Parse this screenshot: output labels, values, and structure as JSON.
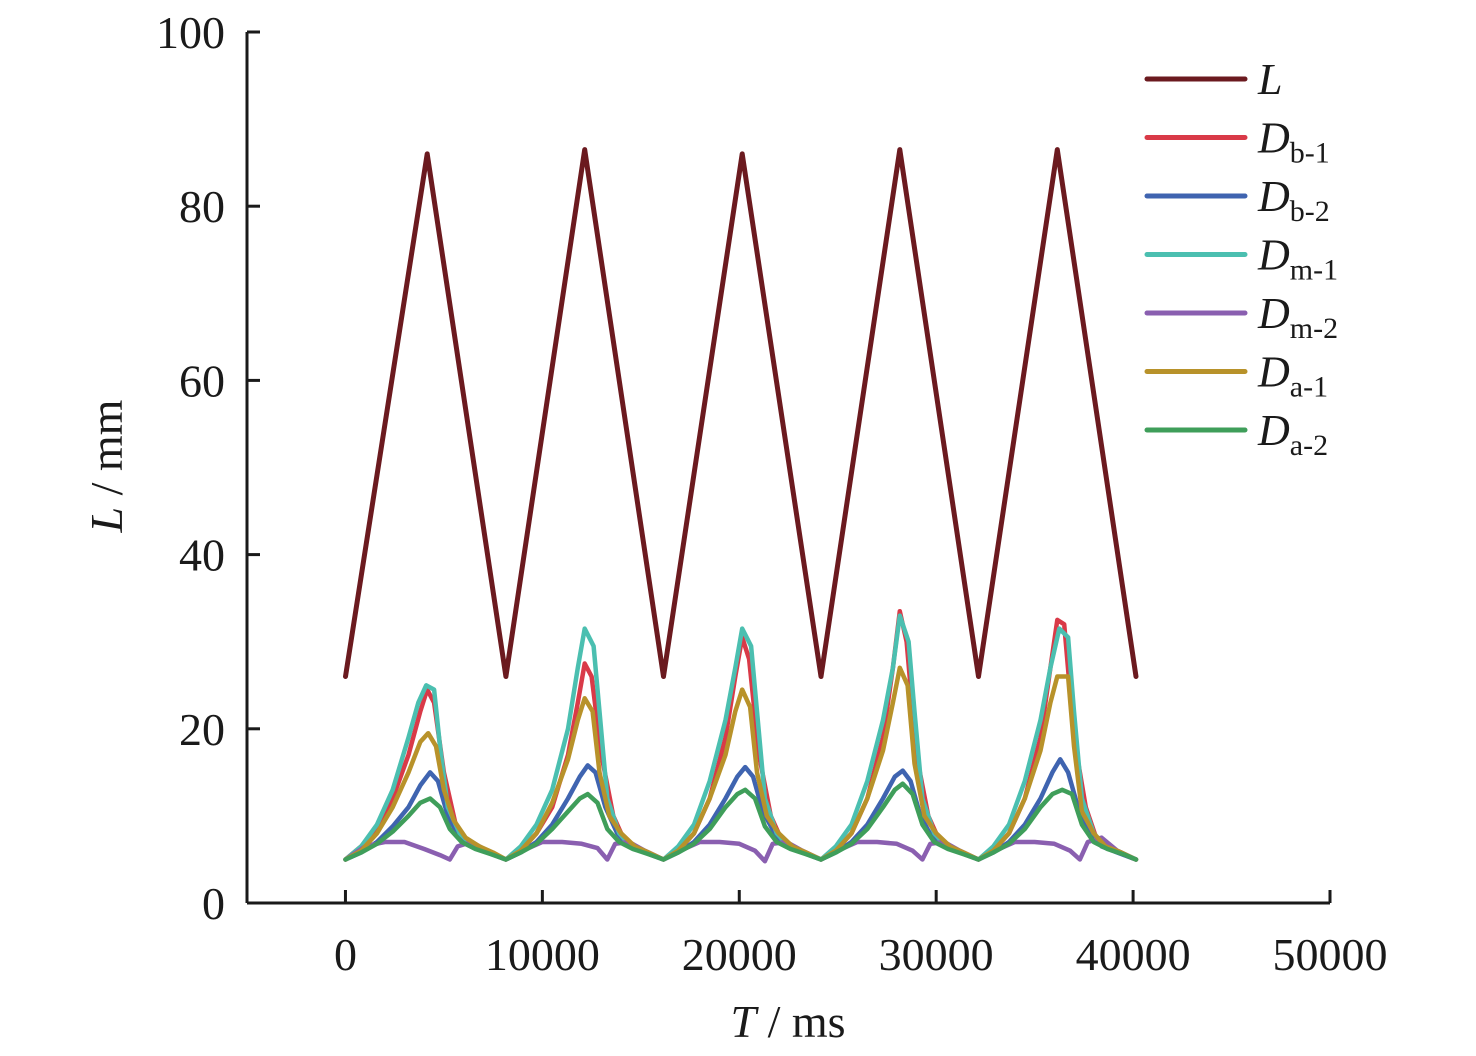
{
  "chart_data": {
    "type": "line",
    "xlabel": {
      "var": "T",
      "unit": " / ms"
    },
    "ylabel": {
      "var": "L",
      "unit": " / mm"
    },
    "xlim": [
      -5000,
      50000
    ],
    "ylim": [
      0,
      100
    ],
    "xticks": [
      0,
      10000,
      20000,
      30000,
      40000,
      50000
    ],
    "yticks": [
      0,
      20,
      40,
      60,
      80,
      100
    ],
    "grid": false,
    "legend_position": "top-right",
    "series": [
      {
        "name": "L",
        "base": "L",
        "sub": "",
        "color": "#6b1a1f",
        "x": [
          0,
          4150,
          8150,
          12150,
          16150,
          20150,
          24150,
          28150,
          32150,
          36150,
          40150
        ],
        "y": [
          26,
          86,
          26,
          86.5,
          26,
          86,
          26,
          86.5,
          26,
          86.5,
          26
        ]
      },
      {
        "name": "D_b-1",
        "base": "D",
        "sub": "b-1",
        "color": "#d93a48",
        "x": [
          0,
          800,
          1600,
          2400,
          3200,
          3800,
          4150,
          4500,
          5000,
          5600,
          6200,
          7000,
          8150,
          8900,
          9700,
          10500,
          11300,
          11800,
          12150,
          12500,
          13000,
          13600,
          14200,
          15000,
          16150,
          16900,
          17700,
          18500,
          19300,
          19800,
          20150,
          20500,
          21000,
          21600,
          22200,
          23000,
          24150,
          24900,
          25700,
          26500,
          27300,
          27800,
          28150,
          28500,
          29000,
          29600,
          30200,
          31000,
          32150,
          32900,
          33700,
          34500,
          35300,
          35800,
          36150,
          36500,
          37000,
          37600,
          38200,
          39000,
          40150
        ],
        "y": [
          5,
          6.5,
          8.5,
          12,
          17,
          22,
          24.5,
          23,
          15,
          9,
          7,
          6,
          5,
          6,
          8,
          11,
          17,
          23,
          27.5,
          26,
          17,
          10,
          7,
          6,
          5,
          6,
          8,
          12,
          19,
          26,
          30.5,
          28,
          17,
          10,
          7,
          6,
          5,
          6,
          8,
          12,
          19,
          27,
          33.5,
          30,
          17,
          10,
          7,
          6,
          5,
          6,
          8,
          12,
          19,
          27,
          32.5,
          32,
          19,
          11,
          7,
          6,
          5
        ]
      },
      {
        "name": "D_b-2",
        "base": "D",
        "sub": "b-2",
        "color": "#3f64b0",
        "x": [
          0,
          800,
          1600,
          2400,
          3200,
          3800,
          4300,
          4700,
          5200,
          5800,
          6400,
          7200,
          8150,
          8900,
          9700,
          10500,
          11300,
          11900,
          12300,
          12700,
          13200,
          13800,
          14400,
          15200,
          16150,
          16900,
          17700,
          18500,
          19300,
          19900,
          20300,
          20700,
          21200,
          21800,
          22400,
          23200,
          24150,
          24900,
          25700,
          26500,
          27300,
          27900,
          28300,
          28700,
          29200,
          29800,
          30400,
          31200,
          32150,
          32900,
          33700,
          34500,
          35300,
          35900,
          36300,
          36700,
          37200,
          37800,
          38400,
          39200,
          40150
        ],
        "y": [
          5,
          5.8,
          7,
          8.8,
          11,
          13.5,
          15,
          14,
          10,
          7.5,
          6.5,
          5.8,
          5,
          5.8,
          7,
          9,
          12,
          14.5,
          15.8,
          15,
          11,
          8,
          6.5,
          5.8,
          5,
          5.8,
          7,
          9,
          12,
          14.5,
          15.6,
          14.5,
          10.5,
          8,
          6.5,
          5.8,
          5,
          5.8,
          7,
          9,
          12,
          14.5,
          15.2,
          14,
          10,
          7.5,
          6.5,
          5.8,
          5,
          5.8,
          7,
          9,
          12,
          15,
          16.5,
          15,
          11,
          8,
          6.5,
          5.8,
          5
        ]
      },
      {
        "name": "D_m-1",
        "base": "D",
        "sub": "m-1",
        "color": "#4bbfb0",
        "x": [
          0,
          800,
          1600,
          2400,
          3200,
          3700,
          4100,
          4500,
          4800,
          5200,
          5800,
          6500,
          7300,
          8150,
          8900,
          9700,
          10500,
          11300,
          11800,
          12150,
          12600,
          12900,
          13300,
          13900,
          14500,
          15300,
          16150,
          16900,
          17700,
          18500,
          19300,
          19800,
          20150,
          20600,
          20900,
          21300,
          21900,
          22500,
          23300,
          24150,
          24900,
          25700,
          26500,
          27300,
          27800,
          28150,
          28600,
          28900,
          29300,
          29900,
          30500,
          31300,
          32150,
          32900,
          33700,
          34500,
          35300,
          35800,
          36250,
          36700,
          37000,
          37400,
          38000,
          38600,
          39400,
          40150
        ],
        "y": [
          5,
          6.5,
          9,
          13,
          19,
          23,
          25,
          24.5,
          18,
          11,
          8,
          6.5,
          5.8,
          5,
          6.5,
          9,
          13,
          20,
          27,
          31.5,
          29.5,
          22,
          12,
          8,
          6.5,
          5.8,
          5,
          6.5,
          9,
          14,
          21,
          27,
          31.5,
          29.5,
          22,
          12,
          8,
          6.5,
          5.8,
          5,
          6.5,
          9,
          14,
          21,
          27,
          33,
          30,
          22,
          12,
          8,
          6.5,
          5.8,
          5,
          6.5,
          9,
          14,
          21,
          27,
          31.5,
          30.5,
          22,
          12,
          8,
          6.5,
          5.8,
          5
        ]
      },
      {
        "name": "D_m-2",
        "base": "D",
        "sub": "m-2",
        "color": "#8a5fb0",
        "x": [
          0,
          1000,
          2000,
          3000,
          4000,
          4800,
          5300,
          5700,
          6400,
          7200,
          8150,
          9000,
          10000,
          11000,
          12000,
          12800,
          13300,
          13700,
          14400,
          15200,
          16150,
          17000,
          18000,
          19000,
          20000,
          20800,
          21300,
          21700,
          22400,
          23200,
          24150,
          25000,
          26000,
          27000,
          28000,
          28800,
          29300,
          29700,
          30400,
          31200,
          32150,
          33000,
          34000,
          35000,
          36000,
          36800,
          37300,
          37700,
          38400,
          39200,
          40150
        ],
        "y": [
          5,
          6.5,
          7,
          7,
          6.2,
          5.5,
          5,
          6.5,
          7,
          6,
          5,
          6,
          7,
          7,
          6.8,
          6.3,
          5,
          6.8,
          7,
          6,
          5,
          6,
          7,
          7,
          6.8,
          6,
          4.8,
          6.8,
          7,
          6,
          5,
          6,
          7,
          7,
          6.8,
          6,
          5,
          6.8,
          7,
          6,
          5,
          6,
          7,
          7,
          6.8,
          6,
          5,
          7,
          7.5,
          6,
          5
        ]
      },
      {
        "name": "D_a-1",
        "base": "D",
        "sub": "a-1",
        "color": "#b8922a",
        "x": [
          0,
          800,
          1600,
          2400,
          3200,
          3800,
          4200,
          4600,
          5000,
          5500,
          6100,
          6800,
          7500,
          8150,
          8900,
          9700,
          10500,
          11300,
          11800,
          12150,
          12550,
          12900,
          13400,
          14000,
          14700,
          15400,
          16150,
          16900,
          17700,
          18500,
          19300,
          19800,
          20150,
          20550,
          20900,
          21400,
          22000,
          22700,
          23400,
          24150,
          24900,
          25700,
          26500,
          27300,
          27800,
          28150,
          28550,
          28900,
          29400,
          30000,
          30700,
          31400,
          32150,
          32900,
          33700,
          34500,
          35300,
          35800,
          36150,
          36700,
          37000,
          37400,
          38000,
          38600,
          39400,
          40150
        ],
        "y": [
          5,
          6,
          8,
          11,
          15,
          18.5,
          19.5,
          18,
          13,
          9.5,
          7.5,
          6.5,
          5.8,
          5,
          6,
          8,
          11.5,
          16.5,
          21,
          23.5,
          22,
          15,
          10,
          8,
          6.5,
          5.8,
          5,
          6,
          8,
          12,
          17,
          22,
          24.5,
          22.5,
          15,
          10,
          8,
          6.5,
          5.8,
          5,
          6,
          8,
          12,
          17.5,
          23,
          27,
          25,
          16,
          10,
          8,
          6.5,
          5.8,
          5,
          6,
          8,
          12,
          17.5,
          23,
          26,
          26,
          18,
          10.5,
          8,
          6.5,
          5.8,
          5
        ]
      },
      {
        "name": "D_a-2",
        "base": "D",
        "sub": "a-2",
        "color": "#3f9e5a",
        "x": [
          0,
          800,
          1600,
          2400,
          3200,
          3800,
          4300,
          4800,
          5300,
          5900,
          6600,
          7400,
          8150,
          8900,
          9700,
          10500,
          11300,
          11900,
          12300,
          12800,
          13300,
          13900,
          14600,
          15400,
          16150,
          16900,
          17700,
          18500,
          19300,
          19900,
          20300,
          20800,
          21300,
          21900,
          22600,
          23400,
          24150,
          24900,
          25700,
          26500,
          27300,
          27900,
          28300,
          28800,
          29300,
          29900,
          30600,
          31400,
          32150,
          32900,
          33700,
          34500,
          35300,
          35900,
          36400,
          36900,
          37400,
          38000,
          38700,
          39500,
          40150
        ],
        "y": [
          5,
          5.8,
          6.8,
          8.2,
          10,
          11.5,
          12,
          11,
          8.5,
          7,
          6.2,
          5.6,
          5,
          5.8,
          6.8,
          8.5,
          10.5,
          12,
          12.5,
          11.5,
          8.5,
          7,
          6.2,
          5.6,
          5,
          5.8,
          6.8,
          8.5,
          11,
          12.5,
          13,
          12,
          8.8,
          7,
          6.2,
          5.6,
          5,
          5.8,
          6.8,
          8.5,
          11,
          13,
          13.7,
          12.5,
          9,
          7,
          6.2,
          5.6,
          5,
          5.8,
          6.8,
          8.5,
          11,
          12.5,
          13,
          12.5,
          9,
          7,
          6.2,
          5.6,
          5
        ]
      }
    ]
  }
}
